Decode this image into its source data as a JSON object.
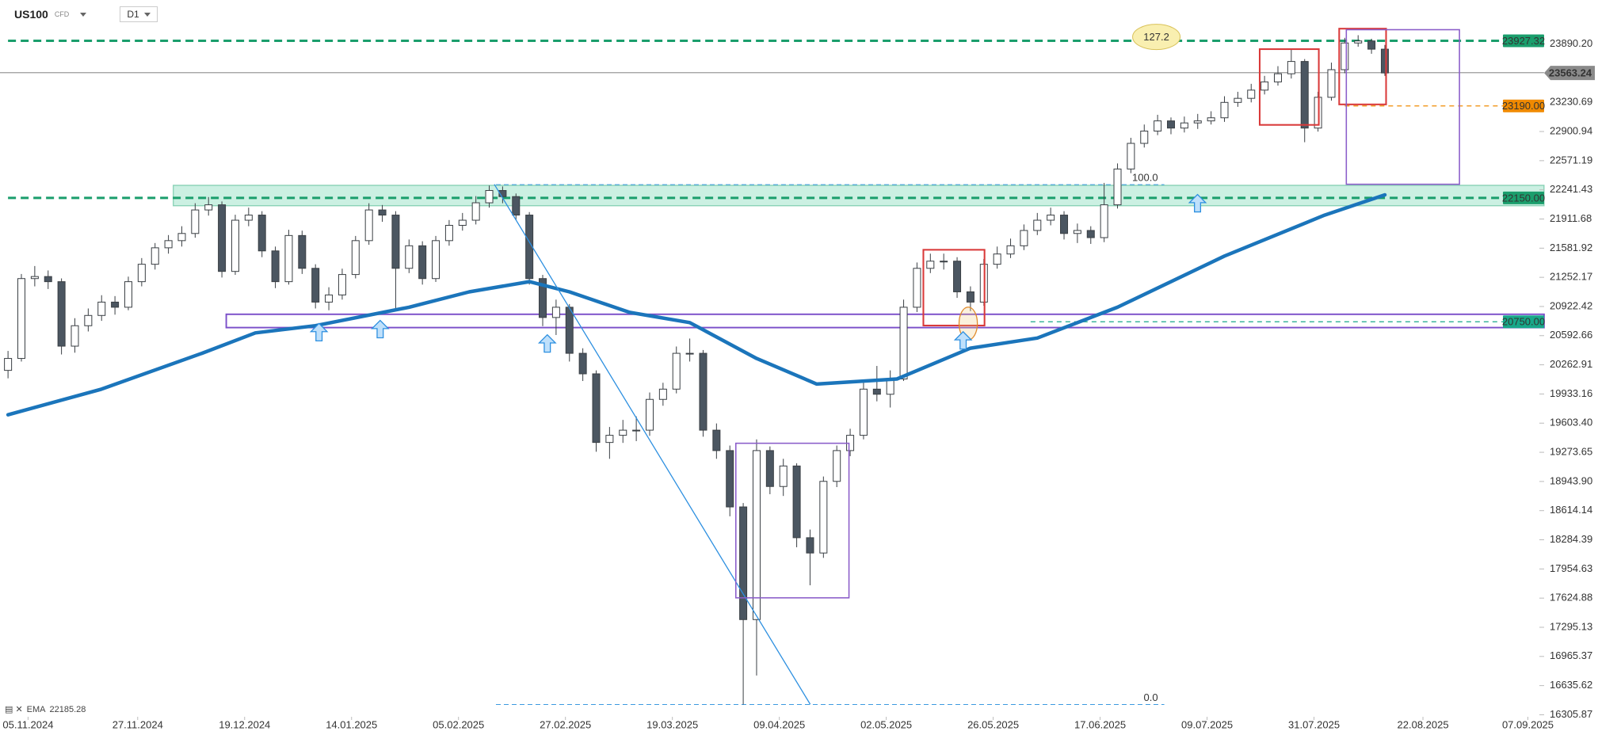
{
  "header": {
    "market": "CFD",
    "timeframe": "D1"
  },
  "chart_data": {
    "type": "candlestick",
    "x": [
      0,
      2,
      4,
      6,
      8,
      10,
      12,
      14,
      16,
      18,
      20,
      22,
      24,
      26,
      28,
      30,
      32,
      34,
      36,
      38,
      40,
      42,
      44,
      46,
      48,
      50,
      52,
      54,
      56,
      58,
      60,
      62,
      64,
      66,
      68,
      70,
      72,
      74,
      76,
      78,
      80,
      82,
      84,
      86,
      88,
      90,
      92,
      94,
      96,
      98,
      100,
      102,
      104,
      106,
      108,
      110,
      112,
      114,
      116,
      118,
      120,
      122,
      124,
      126,
      128,
      130,
      132,
      134,
      136,
      138,
      140,
      142,
      144,
      146,
      148,
      150,
      152,
      154,
      156,
      158,
      160,
      162,
      164,
      166,
      168,
      170,
      172,
      174,
      176,
      178,
      180,
      182,
      184,
      186,
      188,
      190,
      192,
      194,
      196,
      198,
      200,
      202,
      204,
      206
    ],
    "series": [
      {
        "name": "US100",
        "up_color": "#ffffff",
        "down_color": "#4b5661",
        "edge_color": "#3a3f44",
        "open": [
          20200,
          20335,
          21238,
          21261,
          21203,
          20474,
          20705,
          20821,
          20972,
          20914,
          21203,
          21400,
          21586,
          21667,
          21748,
          22014,
          22072,
          21319,
          21898,
          21956,
          21551,
          21203,
          21725,
          21354,
          20972,
          21053,
          21284,
          21667,
          22014,
          21956,
          21354,
          21609,
          21238,
          21667,
          21840,
          21898,
          22095,
          22234,
          22165,
          21956,
          21238,
          20798,
          20914,
          20393,
          20161,
          19385,
          19466,
          19524,
          19524,
          19872,
          19988,
          20393,
          20393,
          19524,
          19293,
          18656,
          17382,
          19293,
          18887,
          19119,
          18308,
          18135,
          18945,
          19293,
          19466,
          19988,
          19930,
          20103,
          20914,
          21354,
          21435,
          21435,
          21088,
          20972,
          21400,
          21516,
          21609,
          21782,
          21898,
          21956,
          21748,
          21782,
          21701,
          22072,
          22477,
          22767,
          22906,
          23021,
          22940,
          22998,
          23021,
          23056,
          23230,
          23276,
          23369,
          23462,
          23554,
          23693,
          22940,
          23288,
          23600,
          23902,
          23925,
          23832
        ],
        "high": [
          20420,
          21290,
          21380,
          21330,
          21240,
          20790,
          20900,
          21050,
          21040,
          21260,
          21470,
          21640,
          21730,
          21830,
          22090,
          22160,
          22110,
          21960,
          22040,
          22000,
          21600,
          21790,
          21780,
          21400,
          21140,
          21350,
          21720,
          22090,
          22070,
          22000,
          21680,
          21660,
          21720,
          21900,
          21980,
          22170,
          22290,
          22280,
          22200,
          21990,
          21280,
          21000,
          20950,
          20450,
          20200,
          19560,
          19640,
          19680,
          19950,
          20060,
          20470,
          20560,
          20430,
          19600,
          19350,
          18700,
          19420,
          19340,
          19200,
          19150,
          18400,
          19000,
          19350,
          19540,
          20060,
          20250,
          20200,
          21000,
          21420,
          21520,
          21520,
          21480,
          21150,
          21460,
          21600,
          21690,
          21850,
          21980,
          22040,
          22000,
          21860,
          21830,
          22320,
          22540,
          22830,
          22980,
          23090,
          23060,
          23070,
          23100,
          23130,
          23300,
          23350,
          23440,
          23530,
          23640,
          23840,
          23720,
          23350,
          23680,
          23960,
          23990,
          23950,
          23880
        ],
        "low": [
          20110,
          20300,
          21150,
          21120,
          20380,
          20400,
          20640,
          20760,
          20830,
          20880,
          21150,
          21340,
          21520,
          21600,
          21700,
          21950,
          21250,
          21280,
          21830,
          21480,
          21130,
          21170,
          21290,
          20900,
          20880,
          21000,
          21240,
          21620,
          21880,
          20900,
          21300,
          21170,
          21200,
          21610,
          21780,
          21850,
          22040,
          22090,
          21900,
          21170,
          20700,
          20600,
          20300,
          20080,
          19280,
          19200,
          19380,
          19400,
          19460,
          19800,
          19940,
          20300,
          19450,
          19200,
          18550,
          16422,
          16750,
          18800,
          18780,
          18200,
          17770,
          18080,
          18880,
          19230,
          19420,
          19850,
          19780,
          20080,
          20860,
          21300,
          21340,
          21020,
          20870,
          20930,
          21350,
          21470,
          21560,
          21730,
          21840,
          21680,
          21640,
          21630,
          21650,
          22030,
          22430,
          22720,
          22860,
          22870,
          22890,
          22930,
          22980,
          23010,
          23180,
          23230,
          23320,
          23420,
          23500,
          22780,
          22900,
          23250,
          23560,
          23860,
          23780,
          23530
        ],
        "close": [
          20335,
          21238,
          21261,
          21203,
          20474,
          20705,
          20821,
          20972,
          20914,
          21203,
          21400,
          21586,
          21667,
          21748,
          22014,
          22072,
          21319,
          21898,
          21956,
          21551,
          21203,
          21725,
          21354,
          20972,
          21053,
          21284,
          21667,
          22014,
          21956,
          21354,
          21609,
          21238,
          21667,
          21840,
          21898,
          22095,
          22234,
          22165,
          21956,
          21238,
          20798,
          20914,
          20393,
          20161,
          19385,
          19466,
          19524,
          19524,
          19872,
          19988,
          20393,
          20393,
          19524,
          19293,
          18656,
          17382,
          19293,
          18887,
          19119,
          18308,
          18135,
          18945,
          19293,
          19466,
          19988,
          19930,
          20103,
          20914,
          21354,
          21435,
          21435,
          21088,
          20972,
          21400,
          21516,
          21609,
          21782,
          21898,
          21956,
          21748,
          21782,
          21701,
          22072,
          22477,
          22767,
          22906,
          23021,
          22940,
          22998,
          23021,
          23056,
          23230,
          23276,
          23369,
          23462,
          23554,
          23693,
          22940,
          23288,
          23600,
          23902,
          23925,
          23832,
          23563.24
        ]
      }
    ],
    "indicators": [
      {
        "name": "EMA",
        "color": "#1b75bb",
        "x": [
          0,
          14,
          29,
          37,
          46,
          60,
          69,
          78,
          84,
          93,
          102,
          112,
          121,
          133,
          144,
          154,
          166,
          182,
          197,
          206
        ],
        "values": [
          19698,
          19988,
          20393,
          20624,
          20705,
          20914,
          21088,
          21203,
          21088,
          20856,
          20740,
          20335,
          20045,
          20103,
          20451,
          20566,
          20914,
          21493,
          21956,
          22185.28
        ]
      }
    ],
    "levels": [
      {
        "value": 23927.32,
        "color": "#1a9e6c",
        "dash": "10 6",
        "start": 0
      },
      {
        "value": 23190,
        "label": "23190.00",
        "color": "#f08a00",
        "dash": "6 5",
        "start": 200
      },
      {
        "value": 22150,
        "label": "22150.00",
        "color": "#1a9e6c",
        "dash": "10 6",
        "start": 0
      },
      {
        "value": 20750,
        "label": "20750.00",
        "color": "#17a889",
        "dash": "6 5",
        "start": 153
      }
    ],
    "fibonacci": {
      "low": 16422,
      "high": 22300,
      "x": [
        73,
        173
      ],
      "color": "#3b99e0",
      "levels": [
        {
          "value": 0,
          "label": "0.0"
        },
        {
          "value": 100,
          "label": "100.0"
        },
        {
          "value": 127.2,
          "label": "127.2"
        }
      ]
    },
    "xlim": [
      -1.2,
      229
    ],
    "ylim": [
      16283,
      24388
    ],
    "xticks": [
      {
        "value": 3,
        "label": "05.11.2024"
      },
      {
        "value": 19.4,
        "label": "27.11.2024"
      },
      {
        "value": 35.4,
        "label": "19.12.2024"
      },
      {
        "value": 51.4,
        "label": "14.01.2025"
      },
      {
        "value": 67.4,
        "label": "05.02.2025"
      },
      {
        "value": 83.4,
        "label": "27.02.2025"
      },
      {
        "value": 99.4,
        "label": "19.03.2025"
      },
      {
        "value": 115.4,
        "label": "09.04.2025"
      },
      {
        "value": 131.4,
        "label": "02.05.2025"
      },
      {
        "value": 147.4,
        "label": "26.05.2025"
      },
      {
        "value": 163.4,
        "label": "17.06.2025"
      },
      {
        "value": 179.4,
        "label": "09.07.2025"
      },
      {
        "value": 195.4,
        "label": "31.07.2025"
      },
      {
        "value": 211.7,
        "label": "22.08.2025"
      },
      {
        "value": 227.4,
        "label": "07.09.2025"
      }
    ],
    "yticks": [
      {
        "value": 23890.2,
        "label": "23890.20"
      },
      23230.69,
      22900.94,
      22571.19,
      22241.43,
      21911.68,
      21581.92,
      21252.17,
      20922.42,
      20592.66,
      20262.91,
      19933.16,
      {
        "value": 19603.4,
        "label": "19603.40"
      },
      19273.65,
      {
        "value": 18943.9,
        "label": "18943.90"
      },
      18614.14,
      18284.39,
      17954.63,
      17624.88,
      17295.13,
      16965.37,
      16635.62,
      16305.87
    ]
  }
}
